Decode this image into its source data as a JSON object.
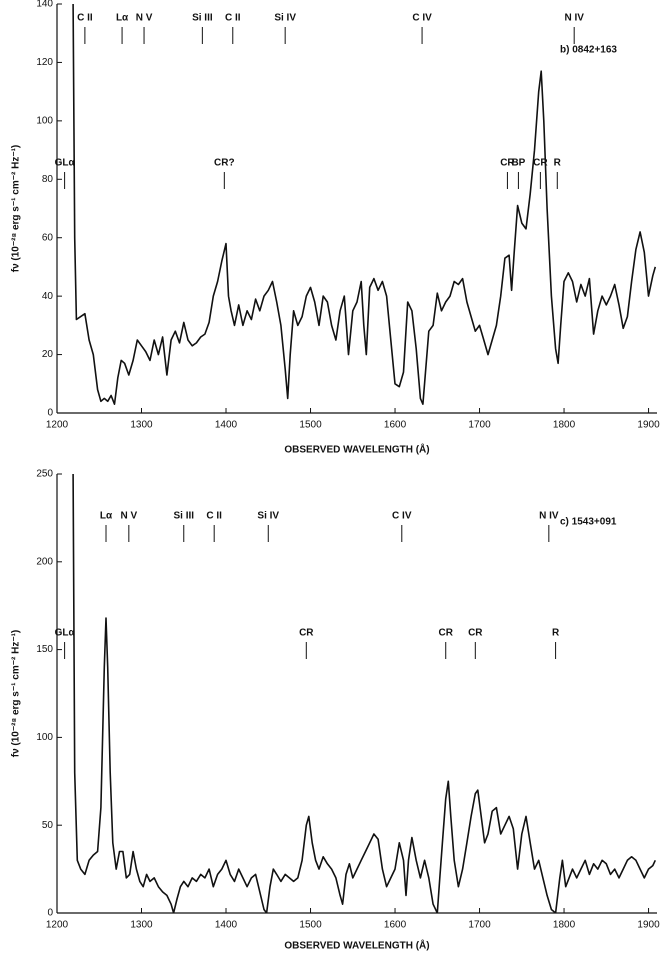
{
  "chart_data": [
    {
      "type": "line",
      "label": "b) 0842+163",
      "ylabel": "fν (10⁻²⁸ erg s⁻¹ cm⁻² Hz⁻¹)",
      "xlabel": "OBSERVED WAVELENGTH (Å)",
      "xlim": [
        1200,
        1910
      ],
      "xticks": [
        1200,
        1300,
        1400,
        1500,
        1600,
        1700,
        1800,
        1900
      ],
      "ylim": [
        0,
        140
      ],
      "yticks": [
        0,
        20,
        40,
        60,
        80,
        100,
        120,
        140
      ],
      "color": "#111111",
      "line_ids": [
        {
          "text": "C II",
          "x": 1233
        },
        {
          "text": "Lα",
          "x": 1277
        },
        {
          "text": "N V",
          "x": 1303
        },
        {
          "text": "Si III",
          "x": 1372
        },
        {
          "text": "C II",
          "x": 1408
        },
        {
          "text": "Si IV",
          "x": 1470
        },
        {
          "text": "C IV",
          "x": 1632
        },
        {
          "text": "N IV",
          "x": 1812
        }
      ],
      "features": [
        {
          "text": "GLα",
          "x": 1209
        },
        {
          "text": "CR?",
          "x": 1398
        },
        {
          "text": "CR",
          "x": 1733
        },
        {
          "text": "BP",
          "x": 1746
        },
        {
          "text": "CR",
          "x": 1772
        },
        {
          "text": "R",
          "x": 1792
        }
      ],
      "x": [
        1219,
        1221,
        1223,
        1228,
        1233,
        1238,
        1243,
        1248,
        1252,
        1256,
        1260,
        1264,
        1268,
        1272,
        1276,
        1280,
        1285,
        1290,
        1295,
        1300,
        1305,
        1310,
        1315,
        1320,
        1325,
        1330,
        1335,
        1340,
        1345,
        1350,
        1355,
        1360,
        1365,
        1370,
        1375,
        1380,
        1385,
        1390,
        1395,
        1400,
        1403,
        1406,
        1410,
        1415,
        1420,
        1425,
        1430,
        1435,
        1440,
        1445,
        1450,
        1455,
        1460,
        1465,
        1470,
        1473,
        1476,
        1480,
        1485,
        1490,
        1495,
        1500,
        1505,
        1510,
        1515,
        1520,
        1525,
        1530,
        1535,
        1540,
        1545,
        1550,
        1555,
        1560,
        1563,
        1566,
        1570,
        1575,
        1580,
        1585,
        1590,
        1595,
        1600,
        1605,
        1610,
        1615,
        1620,
        1625,
        1630,
        1633,
        1636,
        1640,
        1645,
        1650,
        1655,
        1660,
        1665,
        1670,
        1675,
        1680,
        1685,
        1690,
        1695,
        1700,
        1705,
        1710,
        1715,
        1720,
        1725,
        1730,
        1735,
        1738,
        1741,
        1745,
        1750,
        1755,
        1760,
        1765,
        1770,
        1773,
        1776,
        1780,
        1785,
        1790,
        1793,
        1796,
        1800,
        1805,
        1810,
        1815,
        1820,
        1825,
        1830,
        1835,
        1840,
        1845,
        1850,
        1855,
        1860,
        1865,
        1870,
        1875,
        1880,
        1885,
        1890,
        1895,
        1900,
        1905,
        1908
      ],
      "values": [
        140,
        60,
        32,
        33,
        34,
        25,
        20,
        8,
        4,
        5,
        4,
        6,
        3,
        12,
        18,
        17,
        13,
        18,
        25,
        23,
        21,
        18,
        25,
        20,
        26,
        13,
        25,
        28,
        24,
        31,
        25,
        23,
        24,
        26,
        27,
        31,
        40,
        45,
        52,
        58,
        40,
        35,
        30,
        37,
        30,
        35,
        32,
        39,
        35,
        40,
        42,
        45,
        38,
        30,
        15,
        5,
        20,
        35,
        30,
        33,
        40,
        43,
        38,
        30,
        40,
        38,
        30,
        25,
        35,
        40,
        20,
        35,
        38,
        45,
        30,
        20,
        43,
        46,
        42,
        45,
        40,
        25,
        10,
        9,
        14,
        38,
        35,
        22,
        5,
        3,
        14,
        28,
        30,
        41,
        35,
        38,
        40,
        45,
        44,
        46,
        38,
        33,
        28,
        30,
        25,
        20,
        25,
        30,
        40,
        53,
        54,
        42,
        55,
        71,
        65,
        63,
        75,
        90,
        110,
        117,
        100,
        70,
        40,
        22,
        17,
        30,
        45,
        48,
        45,
        38,
        44,
        40,
        46,
        27,
        35,
        40,
        37,
        40,
        44,
        37,
        29,
        33,
        45,
        56,
        62,
        55,
        40,
        47,
        50
      ]
    },
    {
      "type": "line",
      "label": "c) 1543+091",
      "ylabel": "fν (10⁻²⁸ erg s⁻¹ cm⁻² Hz⁻¹)",
      "xlabel": "OBSERVED WAVELENGTH (Å)",
      "xlim": [
        1200,
        1910
      ],
      "xticks": [
        1200,
        1300,
        1400,
        1500,
        1600,
        1700,
        1800,
        1900
      ],
      "ylim": [
        0,
        250
      ],
      "yticks": [
        0,
        50,
        100,
        150,
        200,
        250
      ],
      "color": "#111111",
      "line_ids": [
        {
          "text": "Lα",
          "x": 1258
        },
        {
          "text": "N V",
          "x": 1285
        },
        {
          "text": "Si III",
          "x": 1350
        },
        {
          "text": "C II",
          "x": 1386
        },
        {
          "text": "Si IV",
          "x": 1450
        },
        {
          "text": "C IV",
          "x": 1608
        },
        {
          "text": "N IV",
          "x": 1782
        }
      ],
      "features": [
        {
          "text": "GLα",
          "x": 1209
        },
        {
          "text": "CR",
          "x": 1495
        },
        {
          "text": "CR",
          "x": 1660
        },
        {
          "text": "CR",
          "x": 1695
        },
        {
          "text": "R",
          "x": 1790
        }
      ],
      "x": [
        1219,
        1221,
        1224,
        1228,
        1233,
        1238,
        1243,
        1248,
        1252,
        1256,
        1258,
        1260,
        1263,
        1266,
        1270,
        1274,
        1278,
        1282,
        1286,
        1290,
        1294,
        1298,
        1302,
        1306,
        1310,
        1315,
        1320,
        1325,
        1330,
        1335,
        1338,
        1342,
        1346,
        1350,
        1355,
        1360,
        1365,
        1370,
        1375,
        1380,
        1385,
        1390,
        1395,
        1400,
        1405,
        1410,
        1415,
        1420,
        1425,
        1430,
        1435,
        1440,
        1445,
        1448,
        1452,
        1456,
        1460,
        1465,
        1470,
        1475,
        1480,
        1485,
        1490,
        1495,
        1498,
        1502,
        1506,
        1510,
        1515,
        1520,
        1525,
        1530,
        1535,
        1538,
        1542,
        1546,
        1550,
        1555,
        1560,
        1565,
        1570,
        1575,
        1580,
        1585,
        1590,
        1595,
        1600,
        1605,
        1610,
        1613,
        1616,
        1620,
        1625,
        1630,
        1635,
        1640,
        1645,
        1650,
        1653,
        1656,
        1660,
        1663,
        1666,
        1670,
        1675,
        1680,
        1685,
        1690,
        1695,
        1698,
        1702,
        1706,
        1710,
        1715,
        1720,
        1725,
        1730,
        1735,
        1740,
        1745,
        1750,
        1755,
        1760,
        1765,
        1770,
        1775,
        1780,
        1785,
        1790,
        1795,
        1798,
        1802,
        1806,
        1810,
        1815,
        1820,
        1825,
        1830,
        1835,
        1840,
        1845,
        1850,
        1855,
        1860,
        1865,
        1870,
        1875,
        1880,
        1885,
        1890,
        1895,
        1900,
        1905,
        1908
      ],
      "values": [
        250,
        80,
        30,
        25,
        22,
        30,
        33,
        35,
        60,
        140,
        168,
        140,
        80,
        40,
        25,
        35,
        35,
        20,
        22,
        35,
        25,
        18,
        15,
        22,
        18,
        20,
        15,
        12,
        10,
        5,
        0,
        8,
        15,
        18,
        15,
        20,
        18,
        22,
        20,
        25,
        15,
        22,
        25,
        30,
        22,
        18,
        25,
        20,
        15,
        20,
        22,
        12,
        2,
        0,
        15,
        25,
        22,
        18,
        22,
        20,
        18,
        20,
        30,
        50,
        55,
        40,
        30,
        25,
        32,
        28,
        25,
        20,
        10,
        5,
        22,
        28,
        20,
        25,
        30,
        35,
        40,
        45,
        42,
        25,
        15,
        20,
        25,
        40,
        30,
        10,
        30,
        43,
        30,
        20,
        30,
        20,
        5,
        0,
        20,
        40,
        65,
        75,
        55,
        30,
        15,
        25,
        40,
        55,
        68,
        70,
        55,
        40,
        45,
        58,
        60,
        45,
        50,
        55,
        48,
        25,
        45,
        55,
        40,
        25,
        30,
        20,
        10,
        2,
        0,
        20,
        30,
        15,
        20,
        25,
        20,
        25,
        30,
        22,
        28,
        25,
        30,
        28,
        22,
        25,
        20,
        25,
        30,
        32,
        30,
        25,
        20,
        25,
        27,
        30
      ]
    }
  ]
}
